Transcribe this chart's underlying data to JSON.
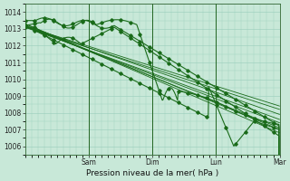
{
  "bg_color": "#c8e8d8",
  "plot_bg_color": "#c8e8d8",
  "grid_color": "#99ccbb",
  "line_color": "#1a6b1a",
  "ylabel_ticks": [
    1006,
    1007,
    1008,
    1009,
    1010,
    1011,
    1012,
    1013,
    1014
  ],
  "ylim": [
    1005.5,
    1014.5
  ],
  "xlabel": "Pression niveau de la mer( hPa )",
  "x_day_labels": [
    "Sam",
    "Dim",
    "Lun",
    "Mar"
  ],
  "label_fontsize": 6.5,
  "tick_fontsize": 5.5
}
